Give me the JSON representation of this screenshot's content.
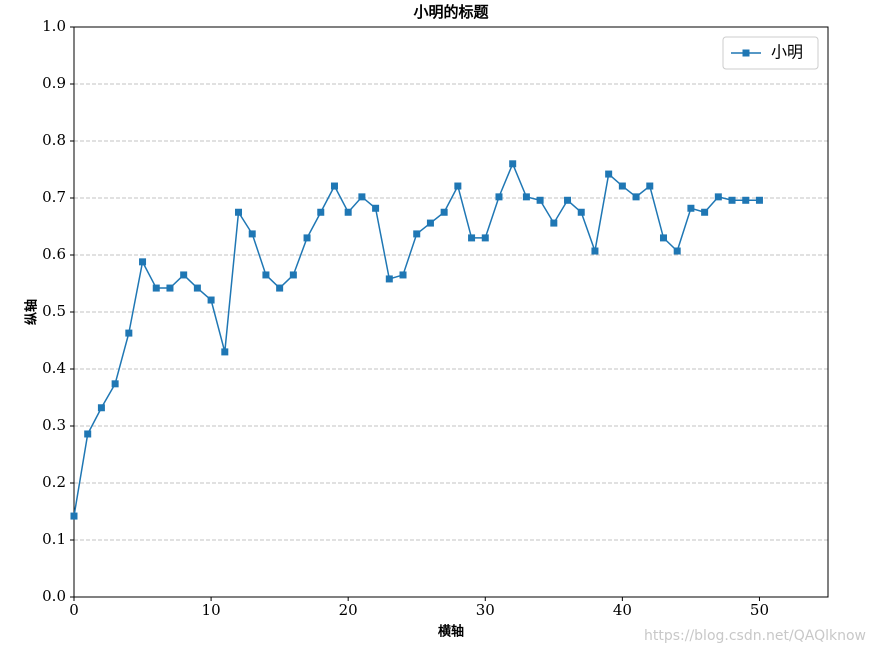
{
  "chart_data": {
    "type": "line",
    "title": "小明的标题",
    "x_label": "横轴",
    "y_label": "纵轴",
    "x": [
      0,
      1,
      2,
      3,
      4,
      5,
      6,
      7,
      8,
      9,
      10,
      11,
      12,
      13,
      14,
      15,
      16,
      17,
      18,
      19,
      20,
      21,
      22,
      23,
      24,
      25,
      26,
      27,
      28,
      29,
      30,
      31,
      32,
      33,
      34,
      35,
      36,
      37,
      38,
      39,
      40,
      41,
      42,
      43,
      44,
      45,
      46,
      47,
      48,
      49,
      50
    ],
    "series": [
      {
        "name": "小明",
        "color": "#1f77b4",
        "marker": "square",
        "values": [
          0.142,
          0.286,
          0.332,
          0.374,
          0.463,
          0.588,
          0.542,
          0.542,
          0.565,
          0.542,
          0.521,
          0.43,
          0.675,
          0.637,
          0.565,
          0.542,
          0.565,
          0.63,
          0.675,
          0.721,
          0.675,
          0.702,
          0.682,
          0.558,
          0.565,
          0.637,
          0.656,
          0.675,
          0.721,
          0.63,
          0.63,
          0.702,
          0.76,
          0.702,
          0.696,
          0.656,
          0.696,
          0.675,
          0.607,
          0.742,
          0.721,
          0.702,
          0.721,
          0.63,
          0.607,
          0.682,
          0.675,
          0.702,
          0.696,
          0.696,
          0.696
        ]
      }
    ],
    "xlim": [
      0,
      55
    ],
    "xticks": [
      0,
      10,
      20,
      30,
      40,
      50
    ],
    "ylim": [
      0,
      1
    ],
    "yticks": [
      {
        "value": 0,
        "label": "0.0"
      },
      0.1,
      0.2,
      0.3,
      0.4,
      0.5,
      0.6,
      0.7,
      0.8,
      0.9,
      {
        "value": 1,
        "label": "1.0"
      }
    ],
    "grid": "y",
    "legend": "upper right",
    "watermark": "https://blog.csdn.net/QAQlknow"
  }
}
